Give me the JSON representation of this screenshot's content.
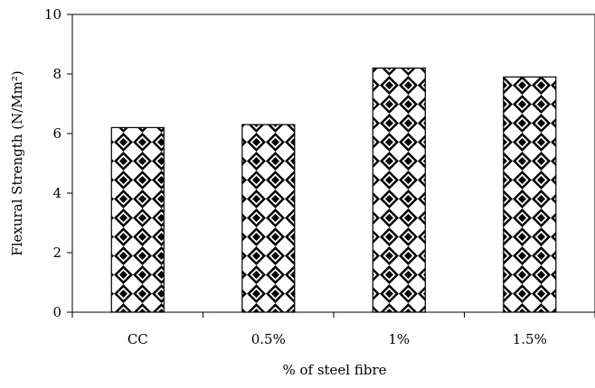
{
  "chart_data": {
    "type": "bar",
    "title": "",
    "categories": [
      "CC",
      "0.5%",
      "1%",
      "1.5%"
    ],
    "values": [
      6.2,
      6.3,
      8.2,
      7.9
    ],
    "xlabel": "% of steel fibre",
    "ylabel": "Flexural Strength (N/Mm²)",
    "ylim": [
      0,
      10
    ],
    "yticks": [
      0,
      2,
      4,
      6,
      8,
      10
    ],
    "grid": false,
    "legend": "none",
    "bar_fill_pattern": "black-diamond-checker",
    "colors": {
      "bar_outline": "#000000",
      "pattern_dark": "#000000",
      "pattern_light": "#ffffff",
      "axis": "#000000"
    }
  }
}
